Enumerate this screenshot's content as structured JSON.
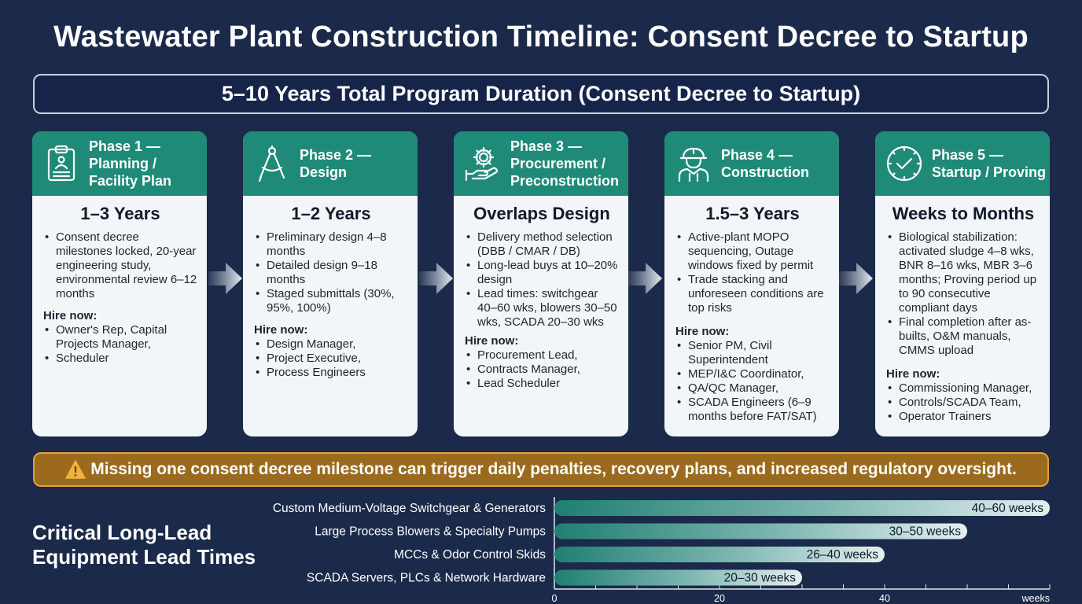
{
  "title": "Wastewater Plant Construction Timeline: Consent Decree to Startup",
  "banner": "5–10 Years Total Program Duration (Consent Decree to Startup)",
  "phases": [
    {
      "title_line1": "Phase 1 —",
      "title_line2": "Planning /",
      "title_line3": "Facility Plan",
      "icon": "clipboard-icon",
      "duration": "1–3 Years",
      "bullets": [
        "Consent decree milestones locked, 20-year engineering study, environmental review 6–12 months"
      ],
      "hire_label": "Hire now:",
      "hires": [
        "Owner's Rep, Capital Projects Manager,",
        "Scheduler"
      ]
    },
    {
      "title_line1": "Phase 2 —",
      "title_line2": "Design",
      "title_line3": "",
      "icon": "compass-icon",
      "duration": "1–2 Years",
      "bullets": [
        "Preliminary design 4–8 months",
        "Detailed design 9–18 months",
        "Staged submittals (30%, 95%, 100%)"
      ],
      "hire_label": "Hire now:",
      "hires": [
        "Design Manager,",
        "Project Executive,",
        "Process Engineers"
      ]
    },
    {
      "title_line1": "Phase 3 —",
      "title_line2": "Procurement /",
      "title_line3": "Preconstruction",
      "icon": "gear-hand-icon",
      "duration": "Overlaps Design",
      "bullets": [
        "Delivery method selection (DBB / CMAR / DB)",
        "Long-lead buys at 10–20% design",
        "Lead times: switchgear 40–60 wks, blowers 30–50 wks, SCADA 20–30 wks"
      ],
      "hire_label": "Hire now:",
      "hires": [
        "Procurement Lead,",
        "Contracts Manager,",
        "Lead Scheduler"
      ]
    },
    {
      "title_line1": "Phase 4 —",
      "title_line2": "Construction",
      "title_line3": "",
      "icon": "hard-hat-worker-icon",
      "duration": "1.5–3 Years",
      "bullets": [
        "Active-plant MOPO sequencing, Outage windows fixed by permit",
        "Trade stacking and unforeseen conditions are top risks"
      ],
      "hire_label": "Hire now:",
      "hires": [
        "Senior PM, Civil Superintendent",
        "MEP/I&C Coordinator,",
        "QA/QC Manager,",
        "SCADA Engineers (6–9 months before FAT/SAT)"
      ]
    },
    {
      "title_line1": "Phase 5 —",
      "title_line2": "Startup / Proving",
      "title_line3": "",
      "icon": "clock-check-icon",
      "duration": "Weeks to Months",
      "bullets": [
        "Biological stabilization: activated sludge 4–8 wks, BNR 8–16 wks, MBR 3–6 months; Proving period up to 90 consecutive compliant days",
        "Final completion after as-builts, O&M manuals, CMMS upload"
      ],
      "hire_label": "Hire now:",
      "hires": [
        "Commissioning Manager,",
        "Controls/SCADA Team,",
        "Operator Trainers"
      ]
    }
  ],
  "warning": "Missing one consent decree milestone can trigger daily penalties, recovery plans, and increased regulatory oversight.",
  "long_lead_title_line1": "Critical Long-Lead",
  "long_lead_title_line2": "Equipment Lead Times",
  "colors": {
    "background": "#1b2a4a",
    "teal": "#1f8a78",
    "card": "#f3f6f8",
    "warning": "#9c6a1d",
    "warning_border": "#e0a33a"
  },
  "chart_data": {
    "type": "bar",
    "orientation": "horizontal",
    "categories": [
      "Custom Medium-Voltage Switchgear & Generators",
      "Large Process Blowers & Specialty Pumps",
      "MCCs & Odor Control Skids",
      "SCADA Servers, PLCs & Network Hardware"
    ],
    "values": [
      [
        40,
        60
      ],
      [
        30,
        50
      ],
      [
        26,
        40
      ],
      [
        20,
        30
      ]
    ],
    "data_labels": [
      "40–60 weeks",
      "30–50 weeks",
      "26–40 weeks",
      "20–30 weeks"
    ],
    "x_ticks": [
      "0",
      "20",
      "40"
    ],
    "x_tick_values": [
      0,
      20,
      40
    ],
    "xlabel": "weeks",
    "xlim": [
      0,
      60
    ],
    "grid": false
  }
}
